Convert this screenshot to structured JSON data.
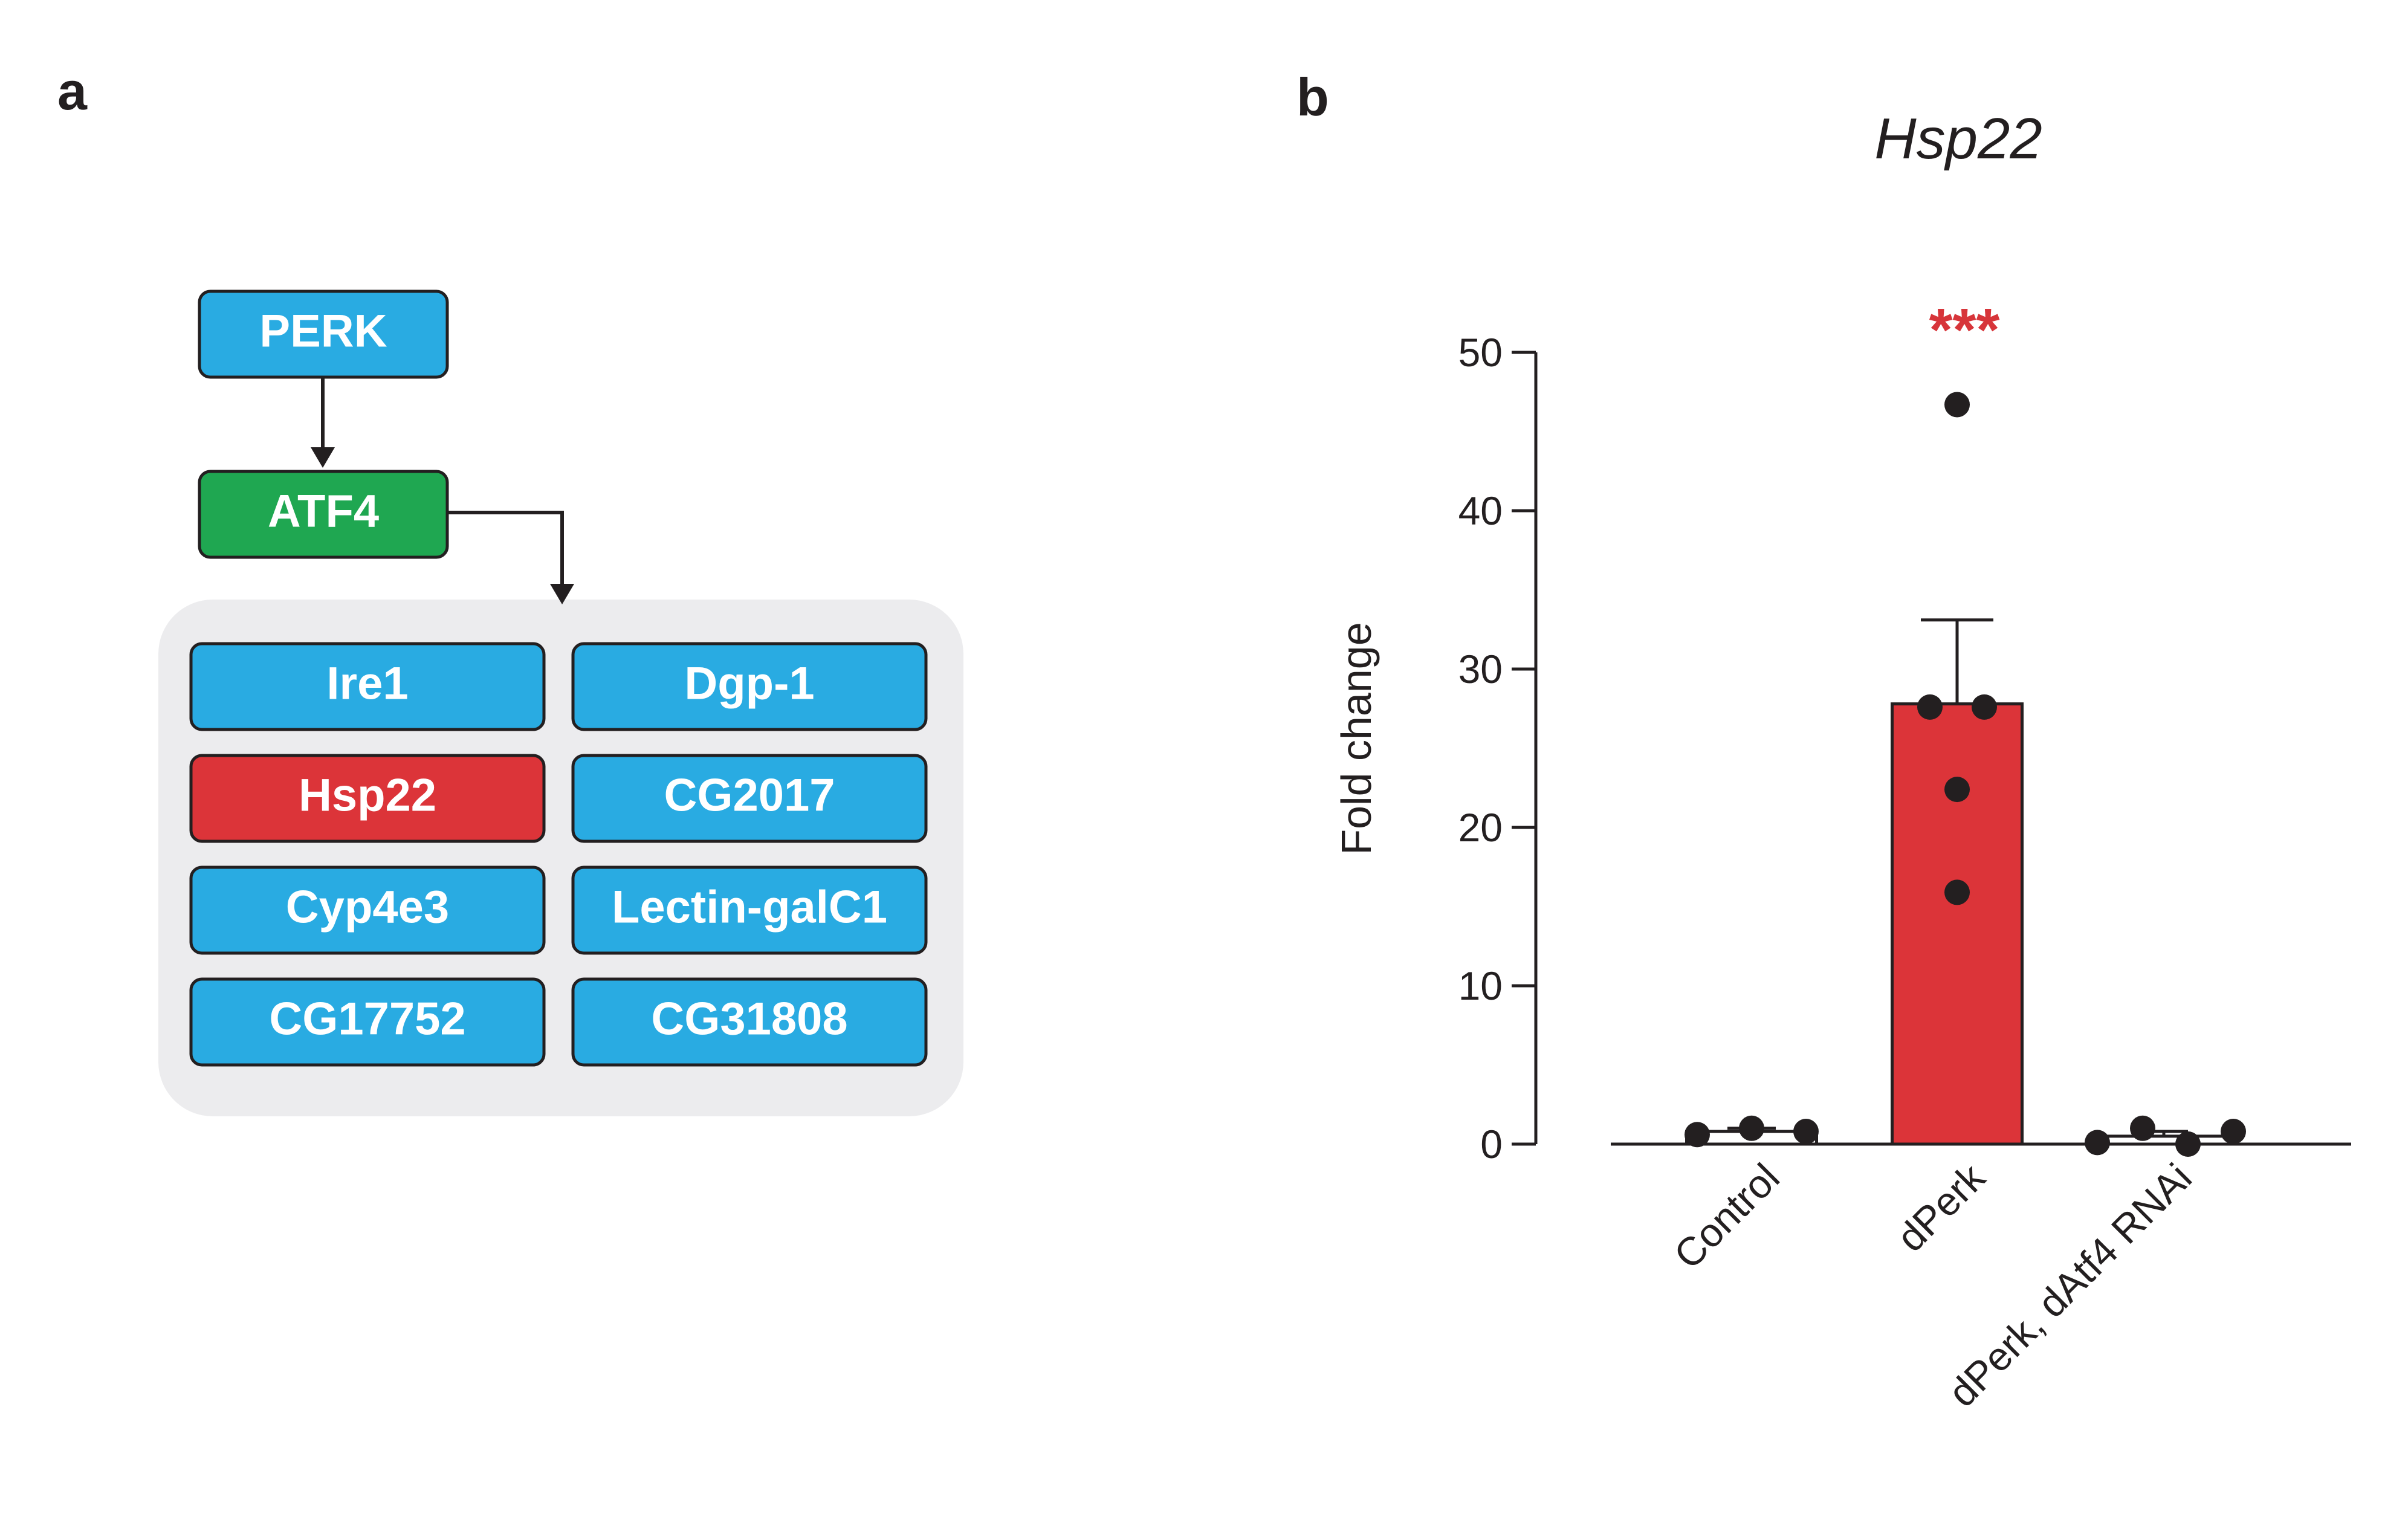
{
  "panel_a": {
    "label": "a",
    "nodes": {
      "perk": "PERK",
      "atf4": "ATF4",
      "targets": [
        "Ire1",
        "Dgp-1",
        "Hsp22",
        "CG2017",
        "Cyp4e3",
        "Lectin-galC1",
        "CG17752",
        "CG31808"
      ]
    },
    "colors": {
      "blue": "#29abe2",
      "green": "#1fa751",
      "red": "#dc3439",
      "group_bg": "#ececee",
      "edge": "#231f20"
    }
  },
  "panel_b": {
    "label": "b"
  },
  "chart_data": {
    "type": "bar",
    "title": "Hsp22",
    "xlabel": "",
    "ylabel": "Fold change",
    "ylim": [
      0,
      50
    ],
    "yticks": [
      0,
      10,
      20,
      30,
      40,
      50
    ],
    "categories": [
      "Control",
      "dPerk",
      "dPerk, dAtf4 RNAi"
    ],
    "values": [
      0.8,
      27.8,
      0.5
    ],
    "sem": [
      0.2,
      5.3,
      0.3
    ],
    "points": [
      [
        0.6,
        1.0,
        0.8
      ],
      [
        46.7,
        27.6,
        27.6,
        22.4,
        15.9
      ],
      [
        0.1,
        1.0,
        0.0,
        0.8
      ]
    ],
    "bar_colors": [
      "#ffffff",
      "#dc3439",
      "#ffffff"
    ],
    "significance": [
      "",
      "***",
      ""
    ],
    "significance_color": "#d7353a"
  }
}
